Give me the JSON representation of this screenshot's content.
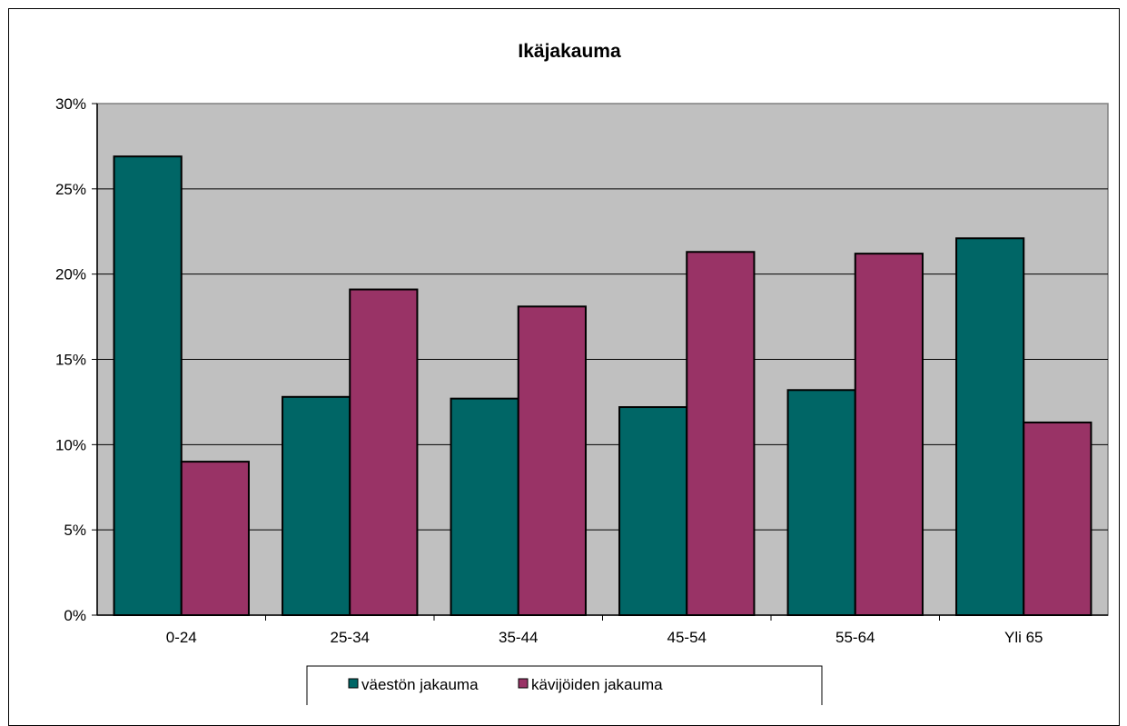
{
  "chart_data": {
    "type": "bar",
    "title": "Ikäjakauma",
    "categories": [
      "0-24",
      "25-34",
      "35-44",
      "45-54",
      "55-64",
      "Yli 65"
    ],
    "series": [
      {
        "name": "väestön jakauma",
        "color": "#006666",
        "values": [
          26.9,
          12.8,
          12.7,
          12.2,
          13.2,
          22.1
        ]
      },
      {
        "name": "kävijöiden jakauma",
        "color": "#993366",
        "values": [
          9.0,
          19.1,
          18.1,
          21.3,
          21.2,
          11.3
        ]
      }
    ],
    "ylim": [
      0,
      30
    ],
    "yticks": [
      "0%",
      "5%",
      "10%",
      "15%",
      "20%",
      "25%",
      "30%"
    ],
    "plot_background": "#c0c0c0",
    "grid": true,
    "legend_position": "bottom"
  }
}
